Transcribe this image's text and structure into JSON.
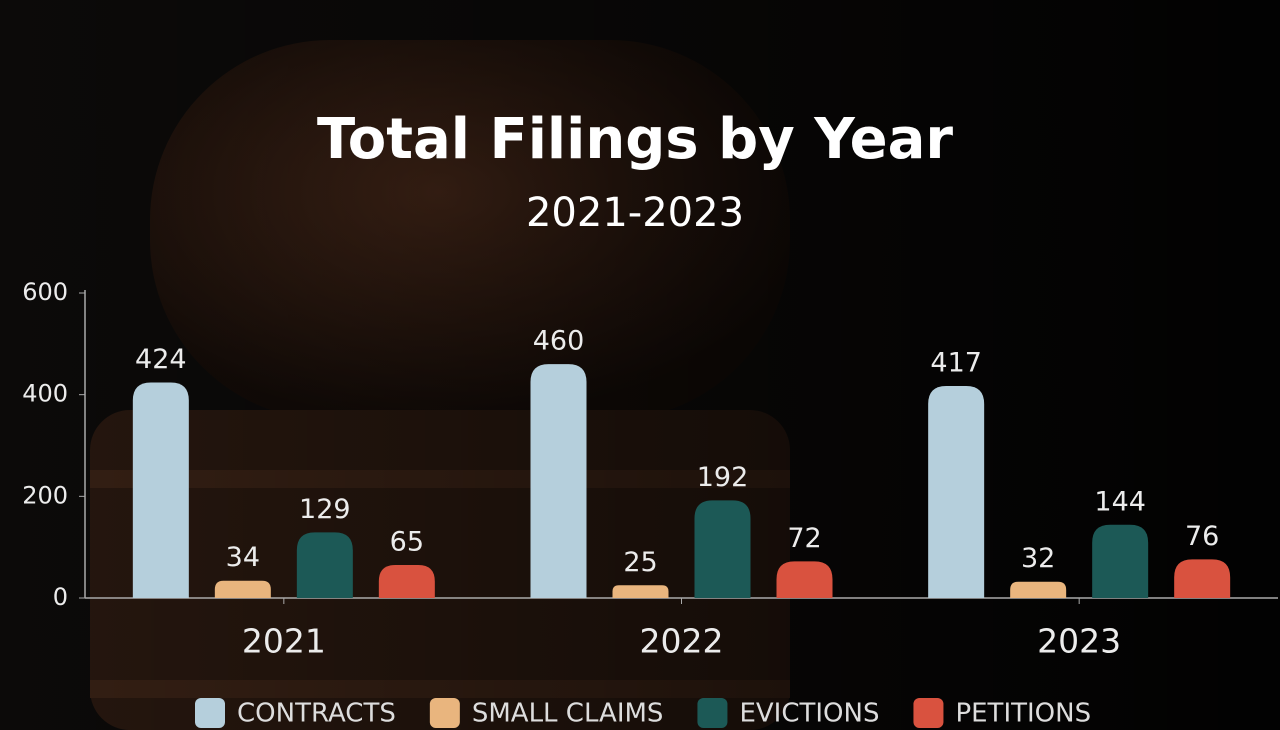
{
  "chart_data": {
    "type": "bar",
    "title": "Total Filings by Year",
    "subtitle": "2021-2023",
    "categories": [
      "2021",
      "2022",
      "2023"
    ],
    "series": [
      {
        "name": "CONTRACTS",
        "color": "#b5cfdc",
        "values": [
          424,
          460,
          417
        ]
      },
      {
        "name": "SMALL CLAIMS",
        "color": "#e9b57e",
        "values": [
          34,
          25,
          32
        ]
      },
      {
        "name": "EVICTIONS",
        "color": "#1c5956",
        "values": [
          129,
          192,
          144
        ]
      },
      {
        "name": "PETITIONS",
        "color": "#d9523f",
        "values": [
          65,
          72,
          76
        ]
      }
    ],
    "ylim": [
      0,
      600
    ],
    "yticks": [
      0,
      200,
      400,
      600
    ],
    "grid": false
  }
}
